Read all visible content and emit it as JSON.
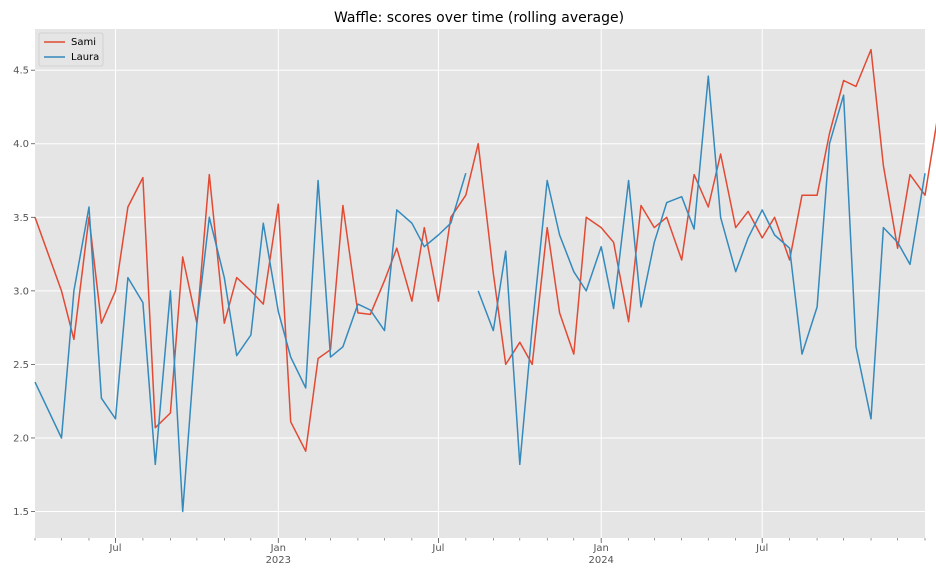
{
  "chart_data": {
    "type": "line",
    "title": "Waffle: scores over time (rolling average)",
    "xlabel": "",
    "ylabel": "",
    "x_axis": {
      "type": "date",
      "range": [
        "2022-04-01",
        "2024-12-01"
      ],
      "major_ticks": [
        {
          "date": "2022-07-01",
          "label": "Jul",
          "sublabel": ""
        },
        {
          "date": "2023-01-01",
          "label": "Jan",
          "sublabel": "2023"
        },
        {
          "date": "2023-07-01",
          "label": "Jul",
          "sublabel": ""
        },
        {
          "date": "2024-01-01",
          "label": "Jan",
          "sublabel": "2024"
        },
        {
          "date": "2024-07-01",
          "label": "Jul",
          "sublabel": ""
        }
      ]
    },
    "ylim": [
      1.32,
      4.78
    ],
    "yticks": [
      1.5,
      2.0,
      2.5,
      3.0,
      3.5,
      4.0,
      4.5
    ],
    "ytick_labels": [
      "1.5",
      "2.0",
      "2.5",
      "3.0",
      "3.5",
      "4.0",
      "4.5"
    ],
    "grid": true,
    "legend": {
      "position": "top-left",
      "entries": [
        "Sami",
        "Laura"
      ]
    },
    "colors": {
      "Sami": "#E24A33",
      "Laura": "#348ABD",
      "background": "#E5E5E5",
      "grid": "#FFFFFF"
    },
    "series": [
      {
        "name": "Sami",
        "points": [
          [
            "2022-04-01",
            3.5
          ],
          [
            "2022-05-01",
            3.0
          ],
          [
            "2022-05-15",
            2.67
          ],
          [
            "2022-06-01",
            3.5
          ],
          [
            "2022-06-15",
            2.78
          ],
          [
            "2022-07-01",
            3.0
          ],
          [
            "2022-07-15",
            3.57
          ],
          [
            "2022-08-01",
            3.77
          ],
          [
            "2022-08-15",
            2.07
          ],
          [
            "2022-09-01",
            2.17
          ],
          [
            "2022-09-15",
            3.23
          ],
          [
            "2022-10-01",
            2.78
          ],
          [
            "2022-10-15",
            3.79
          ],
          [
            "2022-11-01",
            2.78
          ],
          [
            "2022-11-15",
            3.09
          ],
          [
            "2022-12-01",
            3.0
          ],
          [
            "2022-12-15",
            2.91
          ],
          [
            "2023-01-01",
            3.59
          ],
          [
            "2023-01-15",
            2.11
          ],
          [
            "2023-02-01",
            1.91
          ],
          [
            "2023-02-15",
            2.54
          ],
          [
            "2023-03-01",
            2.6
          ],
          [
            "2023-03-15",
            3.58
          ],
          [
            "2023-04-01",
            2.85
          ],
          [
            "2023-04-15",
            2.84
          ],
          [
            "2023-05-01",
            3.07
          ],
          [
            "2023-05-15",
            3.29
          ],
          [
            "2023-06-01",
            2.93
          ],
          [
            "2023-06-15",
            3.43
          ],
          [
            "2023-07-01",
            2.93
          ],
          [
            "2023-07-15",
            3.5
          ],
          [
            "2023-08-01",
            3.65
          ],
          [
            "2023-08-15",
            4.0
          ],
          [
            "2023-09-01",
            3.12
          ],
          [
            "2023-09-15",
            2.5
          ],
          [
            "2023-10-01",
            2.65
          ],
          [
            "2023-10-15",
            2.5
          ],
          [
            "2023-11-01",
            3.43
          ],
          [
            "2023-11-15",
            2.85
          ],
          [
            "2023-12-01",
            2.57
          ],
          [
            "2023-12-15",
            3.5
          ],
          [
            "2024-01-01",
            3.43
          ],
          [
            "2024-01-15",
            3.33
          ],
          [
            "2024-02-01",
            2.79
          ],
          [
            "2024-02-15",
            3.58
          ],
          [
            "2024-03-01",
            3.43
          ],
          [
            "2024-03-15",
            3.5
          ],
          [
            "2024-04-01",
            3.21
          ],
          [
            "2024-04-15",
            3.79
          ],
          [
            "2024-05-01",
            3.57
          ],
          [
            "2024-05-15",
            3.93
          ],
          [
            "2024-06-01",
            3.43
          ],
          [
            "2024-06-15",
            3.54
          ],
          [
            "2024-07-01",
            3.36
          ],
          [
            "2024-07-15",
            3.5
          ],
          [
            "2024-08-01",
            3.21
          ],
          [
            "2024-08-15",
            3.65
          ],
          [
            "2024-09-01",
            3.65
          ],
          [
            "2024-09-15",
            4.07
          ],
          [
            "2024-10-01",
            4.43
          ],
          [
            "2024-10-15",
            4.39
          ],
          [
            "2024-11-01",
            4.64
          ],
          [
            "2024-11-15",
            3.85
          ],
          [
            "2024-12-01",
            3.29
          ],
          [
            "2024-12-15",
            3.79
          ],
          [
            "2025-01-01",
            3.65
          ],
          [
            "2025-01-15",
            4.17
          ]
        ]
      },
      {
        "name": "Laura",
        "segments": [
          [
            [
              "2022-04-01",
              2.38
            ],
            [
              "2022-05-01",
              2.0
            ],
            [
              "2022-05-15",
              3.0
            ],
            [
              "2022-06-01",
              3.57
            ],
            [
              "2022-06-15",
              2.27
            ],
            [
              "2022-07-01",
              2.13
            ],
            [
              "2022-07-15",
              3.09
            ],
            [
              "2022-08-01",
              2.92
            ],
            [
              "2022-08-15",
              1.82
            ],
            [
              "2022-09-01",
              3.0
            ],
            [
              "2022-09-15",
              1.5
            ],
            [
              "2022-10-01",
              2.78
            ],
            [
              "2022-10-15",
              3.5
            ],
            [
              "2022-11-01",
              3.09
            ],
            [
              "2022-11-15",
              2.56
            ],
            [
              "2022-12-01",
              2.7
            ],
            [
              "2022-12-15",
              3.46
            ],
            [
              "2023-01-01",
              2.86
            ],
            [
              "2023-01-15",
              2.55
            ],
            [
              "2023-02-01",
              2.34
            ],
            [
              "2023-02-15",
              3.75
            ],
            [
              "2023-03-01",
              2.55
            ],
            [
              "2023-03-15",
              2.62
            ],
            [
              "2023-04-01",
              2.91
            ],
            [
              "2023-04-15",
              2.87
            ],
            [
              "2023-05-01",
              2.73
            ],
            [
              "2023-05-15",
              3.55
            ],
            [
              "2023-06-01",
              3.46
            ],
            [
              "2023-06-15",
              3.3
            ],
            [
              "2023-07-01",
              3.38
            ],
            [
              "2023-07-15",
              3.46
            ],
            [
              "2023-08-01",
              3.8
            ]
          ],
          [
            [
              "2023-08-15",
              3.0
            ],
            [
              "2023-09-01",
              2.73
            ],
            [
              "2023-09-15",
              3.27
            ],
            [
              "2023-10-01",
              1.82
            ],
            [
              "2023-10-15",
              2.75
            ],
            [
              "2023-11-01",
              3.75
            ],
            [
              "2023-11-15",
              3.38
            ],
            [
              "2023-12-01",
              3.13
            ],
            [
              "2023-12-15",
              3.0
            ],
            [
              "2024-01-01",
              3.3
            ],
            [
              "2024-01-15",
              2.88
            ],
            [
              "2024-02-01",
              3.75
            ],
            [
              "2024-02-15",
              2.89
            ],
            [
              "2024-03-01",
              3.33
            ],
            [
              "2024-03-15",
              3.6
            ],
            [
              "2024-04-01",
              3.64
            ],
            [
              "2024-04-15",
              3.42
            ],
            [
              "2024-05-01",
              4.46
            ],
            [
              "2024-05-15",
              3.5
            ],
            [
              "2024-06-01",
              3.13
            ],
            [
              "2024-06-15",
              3.36
            ],
            [
              "2024-07-01",
              3.55
            ],
            [
              "2024-07-15",
              3.38
            ],
            [
              "2024-08-01",
              3.29
            ],
            [
              "2024-08-15",
              2.57
            ],
            [
              "2024-09-01",
              2.89
            ],
            [
              "2024-09-15",
              4.0
            ],
            [
              "2024-10-01",
              4.33
            ],
            [
              "2024-10-15",
              2.62
            ],
            [
              "2024-11-01",
              2.13
            ],
            [
              "2024-11-15",
              3.43
            ],
            [
              "2024-12-01",
              3.33
            ],
            [
              "2024-12-15",
              3.18
            ],
            [
              "2025-01-01",
              3.8
            ]
          ]
        ]
      }
    ]
  }
}
